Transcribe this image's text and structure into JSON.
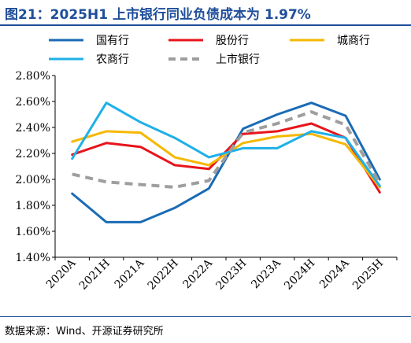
{
  "header": {
    "title": "图21：2025H1 上市银行同业负债成本为 1.97%"
  },
  "footer": {
    "source": "数据来源：Wind、开源证券研究所"
  },
  "chart_data": {
    "type": "line",
    "title": "图21：2025H1 上市银行同业负债成本为 1.97%",
    "xlabel": "",
    "ylabel": "",
    "categories": [
      "2020A",
      "2021H",
      "2021A",
      "2022H",
      "2022A",
      "2023H",
      "2023A",
      "2024H",
      "2024A",
      "2025H"
    ],
    "ylim": [
      1.4,
      2.8
    ],
    "yticks": [
      "1.40%",
      "1.60%",
      "1.80%",
      "2.00%",
      "2.20%",
      "2.40%",
      "2.60%",
      "2.80%"
    ],
    "grid": false,
    "legend": "top",
    "series": [
      {
        "name": "国有行",
        "color": "#1a6bb5",
        "dash": false,
        "values": [
          1.89,
          1.67,
          1.67,
          1.78,
          1.93,
          2.39,
          2.5,
          2.59,
          2.49,
          2.0
        ]
      },
      {
        "name": "股份行",
        "color": "#e8141b",
        "dash": false,
        "values": [
          2.19,
          2.28,
          2.25,
          2.11,
          2.08,
          2.35,
          2.37,
          2.43,
          2.32,
          1.9
        ]
      },
      {
        "name": "城商行",
        "color": "#f5b800",
        "dash": false,
        "values": [
          2.29,
          2.37,
          2.36,
          2.17,
          2.11,
          2.28,
          2.33,
          2.35,
          2.27,
          1.94
        ]
      },
      {
        "name": "农商行",
        "color": "#1fb0e8",
        "dash": false,
        "values": [
          2.16,
          2.59,
          2.44,
          2.32,
          2.17,
          2.24,
          2.24,
          2.37,
          2.32,
          1.95
        ]
      },
      {
        "name": "上市银行",
        "color": "#9e9e9e",
        "dash": true,
        "values": [
          2.04,
          1.98,
          1.96,
          1.94,
          1.99,
          2.36,
          2.43,
          2.52,
          2.42,
          1.97
        ]
      }
    ]
  }
}
